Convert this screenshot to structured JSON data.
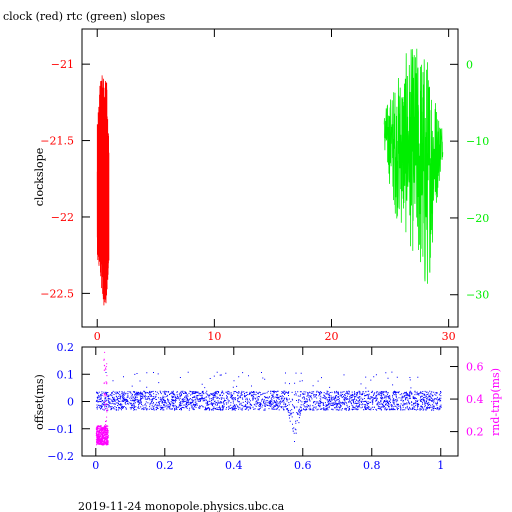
{
  "title": "clock (red) rtc (green) slopes",
  "footer": "2019-11-24 monopole.physics.ubc.ca",
  "chart_data": [
    {
      "type": "line",
      "panel": "top",
      "ylabel": "clockslope",
      "xlim": [
        -1.3,
        30.8
      ],
      "x_ticks": [
        0,
        10,
        20,
        30
      ],
      "left_axis": {
        "ylim": [
          -22.72,
          -20.77
        ],
        "ticks": [
          -21,
          -21.5,
          -22,
          -22.5
        ],
        "color": "#ff0000"
      },
      "right_axis": {
        "ylim": [
          -34.2,
          4.6
        ],
        "ticks": [
          0,
          -10,
          -20,
          -30
        ],
        "color": "#00ee00"
      },
      "series": [
        {
          "axis": "left",
          "color": "#ff0000",
          "x_range": [
            0.0,
            1.0
          ],
          "envelope": [
            {
              "x": 0.0,
              "min": -22.4,
              "max": -21.4
            },
            {
              "x": 0.2,
              "min": -22.3,
              "max": -21.15
            },
            {
              "x": 0.4,
              "min": -22.5,
              "max": -21.05
            },
            {
              "x": 0.6,
              "min": -22.63,
              "max": -21.1
            },
            {
              "x": 0.8,
              "min": -22.55,
              "max": -21.1
            },
            {
              "x": 1.0,
              "min": -22.3,
              "max": -21.5
            }
          ]
        },
        {
          "axis": "right",
          "color": "#00ee00",
          "x_range": [
            24.5,
            29.5
          ],
          "envelope": [
            {
              "x": 24.5,
              "min": -12,
              "max": -6
            },
            {
              "x": 25.5,
              "min": -20,
              "max": -2
            },
            {
              "x": 26.5,
              "min": -23,
              "max": 2
            },
            {
              "x": 27.5,
              "min": -27,
              "max": 3
            },
            {
              "x": 28.0,
              "min": -32,
              "max": 2
            },
            {
              "x": 28.5,
              "min": -26,
              "max": 1
            },
            {
              "x": 29.0,
              "min": -18,
              "max": -5
            },
            {
              "x": 29.5,
              "min": -12,
              "max": -8
            }
          ]
        }
      ]
    },
    {
      "type": "scatter",
      "panel": "bottom",
      "ylabel": "offset(ms)",
      "y2label": "rnd-trip(ms)",
      "xlim": [
        -0.04,
        1.05
      ],
      "x_ticks": [
        0,
        0.2,
        0.4,
        0.6,
        0.8,
        1
      ],
      "left_axis": {
        "ylim": [
          -0.2,
          0.2
        ],
        "ticks": [
          0.2,
          0.1,
          0,
          -0.1,
          -0.2
        ],
        "color": "#0000ff"
      },
      "right_axis": {
        "ylim": [
          0.05,
          0.72
        ],
        "ticks": [
          0.6,
          0.4,
          0.2
        ],
        "color": "#ff00ff"
      },
      "series": [
        {
          "axis": "left",
          "color": "#0000ff",
          "x_range": [
            0.0,
            1.0
          ],
          "band": {
            "min": -0.03,
            "max": 0.04
          },
          "dip": {
            "x": 0.575,
            "min": -0.15
          }
        },
        {
          "axis": "right",
          "color": "#ff00ff",
          "x_range": [
            0.0,
            0.035
          ],
          "band": {
            "min": 0.12,
            "max": 0.24
          }
        }
      ]
    }
  ]
}
